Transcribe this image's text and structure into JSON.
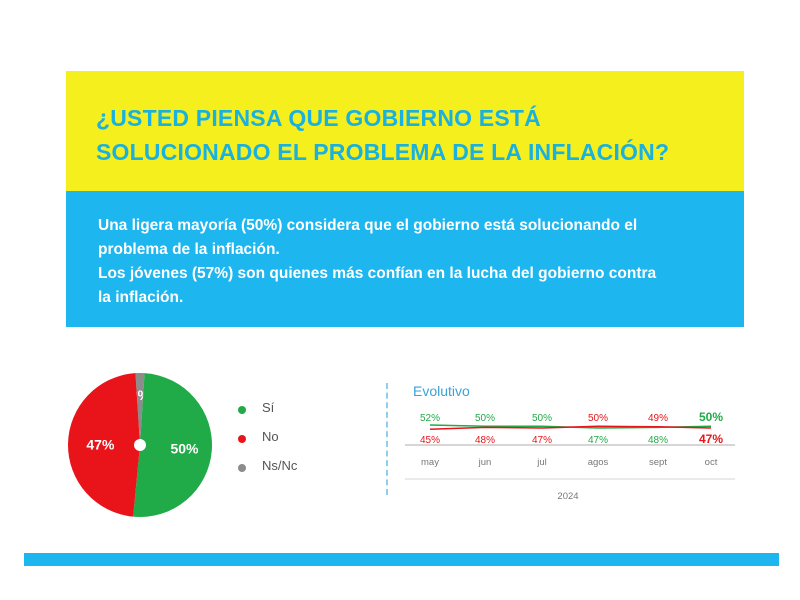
{
  "header": {
    "question_line1": "¿USTED PIENSA QUE GOBIERNO ESTÁ",
    "question_line2": "SOLUCIONADO EL PROBLEMA DE LA INFLACIÓN?"
  },
  "summary": {
    "line1": "Una ligera mayoría (50%) considera que el gobierno está solucionando el",
    "line2": "problema de la inflación.",
    "line3": "Los jóvenes (57%) son quienes más confían en la lucha del gobierno contra",
    "line4": "la inflación."
  },
  "colors": {
    "yellow_band": "#f6ef1e",
    "blue_band": "#1eb6ef",
    "title_text": "#19b1df",
    "si": "#21aa48",
    "no": "#e8141a",
    "nsnc": "#8c8c8c"
  },
  "chart_data": [
    {
      "type": "pie",
      "slices": [
        {
          "label": "Sí",
          "value": 50,
          "display": "50%",
          "color": "#21aa48"
        },
        {
          "label": "No",
          "value": 47,
          "display": "47%",
          "color": "#e8141a"
        },
        {
          "label": "Ns/Nc",
          "value": 2,
          "display": "2%",
          "color": "#8c8c8c"
        }
      ],
      "legend": [
        "Sí",
        "No",
        "Ns/Nc"
      ],
      "legend_position": "right"
    },
    {
      "type": "line",
      "title": "Evolutivo",
      "categories": [
        "may",
        "jun",
        "jul",
        "agos",
        "sept",
        "oct"
      ],
      "xlabel": "2024",
      "series": [
        {
          "key": "si",
          "values": [
            52,
            50,
            50,
            47,
            48,
            50
          ],
          "labels": [
            "52%",
            "50%",
            "50%",
            "47%",
            "48%",
            "50%"
          ],
          "color": "#21aa48"
        },
        {
          "key": "no",
          "values": [
            45,
            48,
            47,
            50,
            49,
            47
          ],
          "labels": [
            "45%",
            "48%",
            "47%",
            "50%",
            "49%",
            "47%"
          ],
          "color": "#e8141a"
        }
      ]
    }
  ]
}
